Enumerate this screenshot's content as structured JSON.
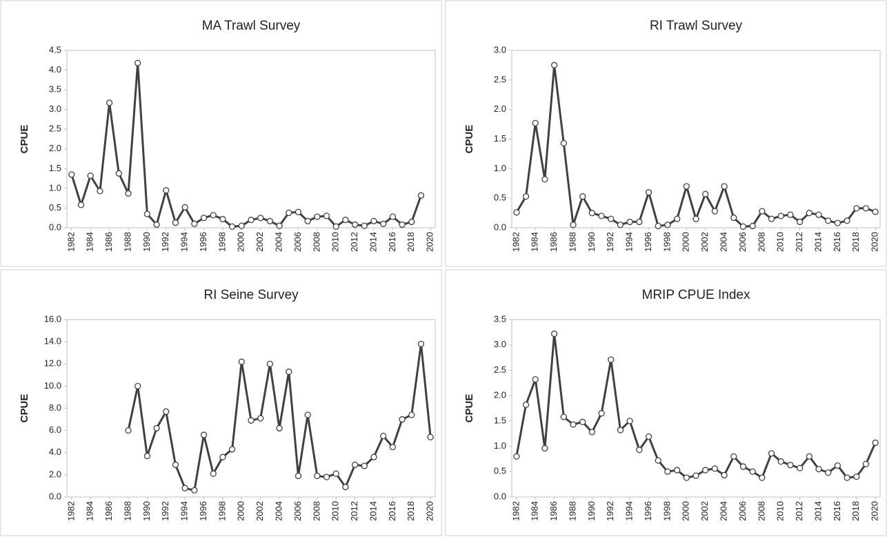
{
  "chart_data": [
    {
      "type": "line",
      "title": "MA Trawl Survey",
      "y_label": "CPUE",
      "color": "#404040",
      "x": [
        1982,
        1983,
        1984,
        1985,
        1986,
        1987,
        1988,
        1989,
        1990,
        1991,
        1992,
        1993,
        1994,
        1995,
        1996,
        1997,
        1998,
        1999,
        2000,
        2001,
        2002,
        2003,
        2004,
        2005,
        2006,
        2007,
        2008,
        2009,
        2010,
        2011,
        2012,
        2013,
        2014,
        2015,
        2016,
        2017,
        2018,
        2019,
        2020
      ],
      "values": [
        1.35,
        0.58,
        1.32,
        0.93,
        3.17,
        1.38,
        0.87,
        4.18,
        0.35,
        0.08,
        0.95,
        0.13,
        0.52,
        0.1,
        0.25,
        0.32,
        0.22,
        0.03,
        0.05,
        0.2,
        0.25,
        0.17,
        0.05,
        0.38,
        0.4,
        0.17,
        0.28,
        0.3,
        0.03,
        0.2,
        0.08,
        0.05,
        0.17,
        0.1,
        0.28,
        0.08,
        0.15,
        0.82,
        null
      ],
      "xlim": [
        1981.5,
        2020.5
      ],
      "xticks": [
        1982,
        1984,
        1986,
        1988,
        1990,
        1992,
        1994,
        1996,
        1998,
        2000,
        2002,
        2004,
        2006,
        2008,
        2010,
        2012,
        2014,
        2016,
        2018,
        2020
      ],
      "ylim": [
        0,
        4.5
      ],
      "yticks": [
        {
          "value": 0,
          "label": "0.0"
        },
        0.5,
        {
          "value": 1,
          "label": "1.0"
        },
        1.5,
        {
          "value": 2,
          "label": "2.0"
        },
        2.5,
        {
          "value": 3,
          "label": "3.0"
        },
        3.5,
        {
          "value": 4,
          "label": "4.0"
        },
        4.5
      ]
    },
    {
      "type": "line",
      "title": "RI Trawl Survey",
      "y_label": "CPUE",
      "color": "#404040",
      "x": [
        1982,
        1983,
        1984,
        1985,
        1986,
        1987,
        1988,
        1989,
        1990,
        1991,
        1992,
        1993,
        1994,
        1995,
        1996,
        1997,
        1998,
        1999,
        2000,
        2001,
        2002,
        2003,
        2004,
        2005,
        2006,
        2007,
        2008,
        2009,
        2010,
        2011,
        2012,
        2013,
        2014,
        2015,
        2016,
        2017,
        2018,
        2019,
        2020
      ],
      "values": [
        0.26,
        0.53,
        1.77,
        0.82,
        2.75,
        1.43,
        0.05,
        0.53,
        0.25,
        0.2,
        0.15,
        0.05,
        0.1,
        0.1,
        0.6,
        0.03,
        0.05,
        0.15,
        0.7,
        0.15,
        0.57,
        0.28,
        0.7,
        0.17,
        0.02,
        0.03,
        0.28,
        0.15,
        0.2,
        0.22,
        0.1,
        0.25,
        0.22,
        0.12,
        0.08,
        0.12,
        0.33,
        0.33,
        0.27
      ],
      "xlim": [
        1981.5,
        2020.5
      ],
      "xticks": [
        1982,
        1984,
        1986,
        1988,
        1990,
        1992,
        1994,
        1996,
        1998,
        2000,
        2002,
        2004,
        2006,
        2008,
        2010,
        2012,
        2014,
        2016,
        2018,
        2020
      ],
      "ylim": [
        0,
        3
      ],
      "yticks": [
        {
          "value": 0,
          "label": "0.0"
        },
        0.5,
        {
          "value": 1,
          "label": "1.0"
        },
        1.5,
        {
          "value": 2,
          "label": "2.0"
        },
        2.5,
        {
          "value": 3,
          "label": "3.0"
        }
      ]
    },
    {
      "type": "line",
      "title": "RI Seine Survey",
      "y_label": "CPUE",
      "color": "#404040",
      "x": [
        1982,
        1983,
        1984,
        1985,
        1986,
        1987,
        1988,
        1989,
        1990,
        1991,
        1992,
        1993,
        1994,
        1995,
        1996,
        1997,
        1998,
        1999,
        2000,
        2001,
        2002,
        2003,
        2004,
        2005,
        2006,
        2007,
        2008,
        2009,
        2010,
        2011,
        2012,
        2013,
        2014,
        2015,
        2016,
        2017,
        2018,
        2019,
        2020
      ],
      "values": [
        null,
        null,
        null,
        null,
        null,
        null,
        6.0,
        10.0,
        3.7,
        6.2,
        7.7,
        2.9,
        0.8,
        0.6,
        5.6,
        2.1,
        3.6,
        4.3,
        12.2,
        6.9,
        7.1,
        12.0,
        6.2,
        11.3,
        1.9,
        7.4,
        1.9,
        1.8,
        2.1,
        0.9,
        2.9,
        2.8,
        3.6,
        5.5,
        4.5,
        7.0,
        7.4,
        13.8,
        5.4
      ],
      "xlim": [
        1981.5,
        2020.5
      ],
      "xticks": [
        1982,
        1984,
        1986,
        1988,
        1990,
        1992,
        1994,
        1996,
        1998,
        2000,
        2002,
        2004,
        2006,
        2008,
        2010,
        2012,
        2014,
        2016,
        2018,
        2020
      ],
      "ylim": [
        0,
        16
      ],
      "yticks": [
        {
          "value": 0,
          "label": "0.0"
        },
        {
          "value": 2,
          "label": "2.0"
        },
        {
          "value": 4,
          "label": "4.0"
        },
        {
          "value": 6,
          "label": "6.0"
        },
        {
          "value": 8,
          "label": "8.0"
        },
        {
          "value": 10,
          "label": "10.0"
        },
        {
          "value": 12,
          "label": "12.0"
        },
        {
          "value": 14,
          "label": "14.0"
        },
        {
          "value": 16,
          "label": "16.0"
        }
      ]
    },
    {
      "type": "line",
      "title": "MRIP CPUE Index",
      "y_label": "CPUE",
      "color": "#404040",
      "x": [
        1982,
        1983,
        1984,
        1985,
        1986,
        1987,
        1988,
        1989,
        1990,
        1991,
        1992,
        1993,
        1994,
        1995,
        1996,
        1997,
        1998,
        1999,
        2000,
        2001,
        2002,
        2003,
        2004,
        2005,
        2006,
        2007,
        2008,
        2009,
        2010,
        2011,
        2012,
        2013,
        2014,
        2015,
        2016,
        2017,
        2018,
        2019,
        2020
      ],
      "values": [
        0.8,
        1.82,
        2.32,
        0.96,
        3.22,
        1.58,
        1.43,
        1.48,
        1.28,
        1.65,
        2.71,
        1.32,
        1.5,
        0.93,
        1.19,
        0.72,
        0.5,
        0.53,
        0.38,
        0.42,
        0.53,
        0.56,
        0.43,
        0.8,
        0.6,
        0.5,
        0.38,
        0.86,
        0.7,
        0.63,
        0.57,
        0.8,
        0.55,
        0.48,
        0.62,
        0.38,
        0.4,
        0.65,
        1.07
      ],
      "xlim": [
        1981.5,
        2020.5
      ],
      "xticks": [
        1982,
        1984,
        1986,
        1988,
        1990,
        1992,
        1994,
        1996,
        1998,
        2000,
        2002,
        2004,
        2006,
        2008,
        2010,
        2012,
        2014,
        2016,
        2018,
        2020
      ],
      "ylim": [
        0,
        3.5
      ],
      "yticks": [
        {
          "value": 0,
          "label": "0.0"
        },
        0.5,
        {
          "value": 1,
          "label": "1.0"
        },
        1.5,
        {
          "value": 2,
          "label": "2.0"
        },
        2.5,
        {
          "value": 3,
          "label": "3.0"
        },
        3.5
      ]
    }
  ]
}
